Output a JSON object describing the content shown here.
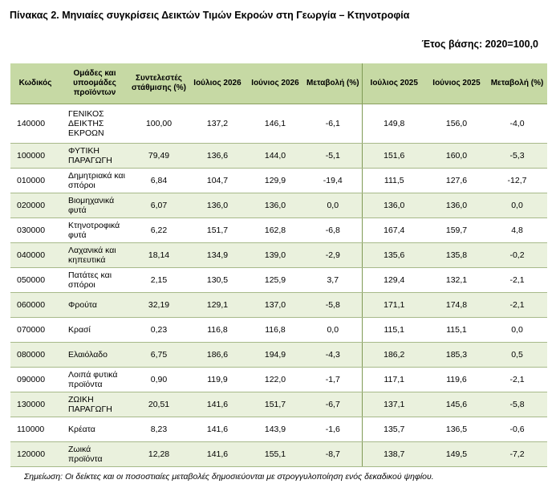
{
  "title": "Πίνακας 2. Μηνιαίες συγκρίσεις Δεικτών Τιμών Εκροών στη Γεωργία – Κτηνοτροφία",
  "basis": "Έτος βάσης: 2020=100,0",
  "headers": {
    "code": "Κωδικός",
    "group": "Ομάδες και υποομάδες προϊόντων",
    "weight": "Συντελεστές στάθμισης (%)",
    "jul_2026": "Ιούλιος 2026",
    "jun_2026": "Ιούνιος 2026",
    "chg_2026": "Μεταβολή (%)",
    "jul_2025": "Ιούλιος 2025",
    "jun_2025": "Ιούνιος 2025",
    "chg_2025": "Μεταβολή (%)"
  },
  "rows": [
    {
      "code": "140000",
      "name": "ΓΕΝΙΚΟΣ ΔΕΙΚΤΗΣ ΕΚΡΟΩΝ",
      "weight": "100,00",
      "jul26": "137,2",
      "jun26": "146,1",
      "chg26": "-6,1",
      "jul25": "149,8",
      "jun25": "156,0",
      "chg25": "-4,0"
    },
    {
      "code": "100000",
      "name": "ΦΥΤΙΚΗ ΠΑΡΑΓΩΓΗ",
      "weight": "79,49",
      "jul26": "136,6",
      "jun26": "144,0",
      "chg26": "-5,1",
      "jul25": "151,6",
      "jun25": "160,0",
      "chg25": "-5,3"
    },
    {
      "code": "010000",
      "name": "Δημητριακά και σπόροι",
      "weight": "6,84",
      "jul26": "104,7",
      "jun26": "129,9",
      "chg26": "-19,4",
      "jul25": "111,5",
      "jun25": "127,6",
      "chg25": "-12,7"
    },
    {
      "code": "020000",
      "name": "Βιομηχανικά φυτά",
      "weight": "6,07",
      "jul26": "136,0",
      "jun26": "136,0",
      "chg26": "0,0",
      "jul25": "136,0",
      "jun25": "136,0",
      "chg25": "0,0"
    },
    {
      "code": "030000",
      "name": "Κτηνοτροφικά φυτά",
      "weight": "6,22",
      "jul26": "151,7",
      "jun26": "162,8",
      "chg26": "-6,8",
      "jul25": "167,4",
      "jun25": "159,7",
      "chg25": "4,8"
    },
    {
      "code": "040000",
      "name": "Λαχανικά και κηπευτικά",
      "weight": "18,14",
      "jul26": "134,9",
      "jun26": "139,0",
      "chg26": "-2,9",
      "jul25": "135,6",
      "jun25": "135,8",
      "chg25": "-0,2"
    },
    {
      "code": "050000",
      "name": "Πατάτες και σπόροι",
      "weight": "2,15",
      "jul26": "130,5",
      "jun26": "125,9",
      "chg26": "3,7",
      "jul25": "129,4",
      "jun25": "132,1",
      "chg25": "-2,1"
    },
    {
      "code": "060000",
      "name": "Φρούτα",
      "weight": "32,19",
      "jul26": "129,1",
      "jun26": "137,0",
      "chg26": "-5,8",
      "jul25": "171,1",
      "jun25": "174,8",
      "chg25": "-2,1"
    },
    {
      "code": "070000",
      "name": "Κρασί",
      "weight": "0,23",
      "jul26": "116,8",
      "jun26": "116,8",
      "chg26": "0,0",
      "jul25": "115,1",
      "jun25": "115,1",
      "chg25": "0,0"
    },
    {
      "code": "080000",
      "name": "Ελαιόλαδο",
      "weight": "6,75",
      "jul26": "186,6",
      "jun26": "194,9",
      "chg26": "-4,3",
      "jul25": "186,2",
      "jun25": "185,3",
      "chg25": "0,5"
    },
    {
      "code": "090000",
      "name": "Λοιπά φυτικά προϊόντα",
      "weight": "0,90",
      "jul26": "119,9",
      "jun26": "122,0",
      "chg26": "-1,7",
      "jul25": "117,1",
      "jun25": "119,6",
      "chg25": "-2,1"
    },
    {
      "code": "130000",
      "name": "ΖΩΙΚΗ ΠΑΡΑΓΩΓΗ",
      "weight": "20,51",
      "jul26": "141,6",
      "jun26": "151,7",
      "chg26": "-6,7",
      "jul25": "137,1",
      "jun25": "145,6",
      "chg25": "-5,8"
    },
    {
      "code": "110000",
      "name": "Κρέατα",
      "weight": "8,23",
      "jul26": "141,6",
      "jun26": "143,9",
      "chg26": "-1,6",
      "jul25": "135,7",
      "jun25": "136,5",
      "chg25": "-0,6"
    },
    {
      "code": "120000",
      "name": "Ζωικά προϊόντα",
      "weight": "12,28",
      "jul26": "141,6",
      "jun26": "155,1",
      "chg26": "-8,7",
      "jul25": "138,7",
      "jun25": "149,5",
      "chg25": "-7,2"
    }
  ],
  "note": "Σημείωση: Οι δείκτες και οι ποσοστιαίες μεταβολές δημοσιεύονται με στρογγυλοποίηση ενός δεκαδικού ψηφίου."
}
